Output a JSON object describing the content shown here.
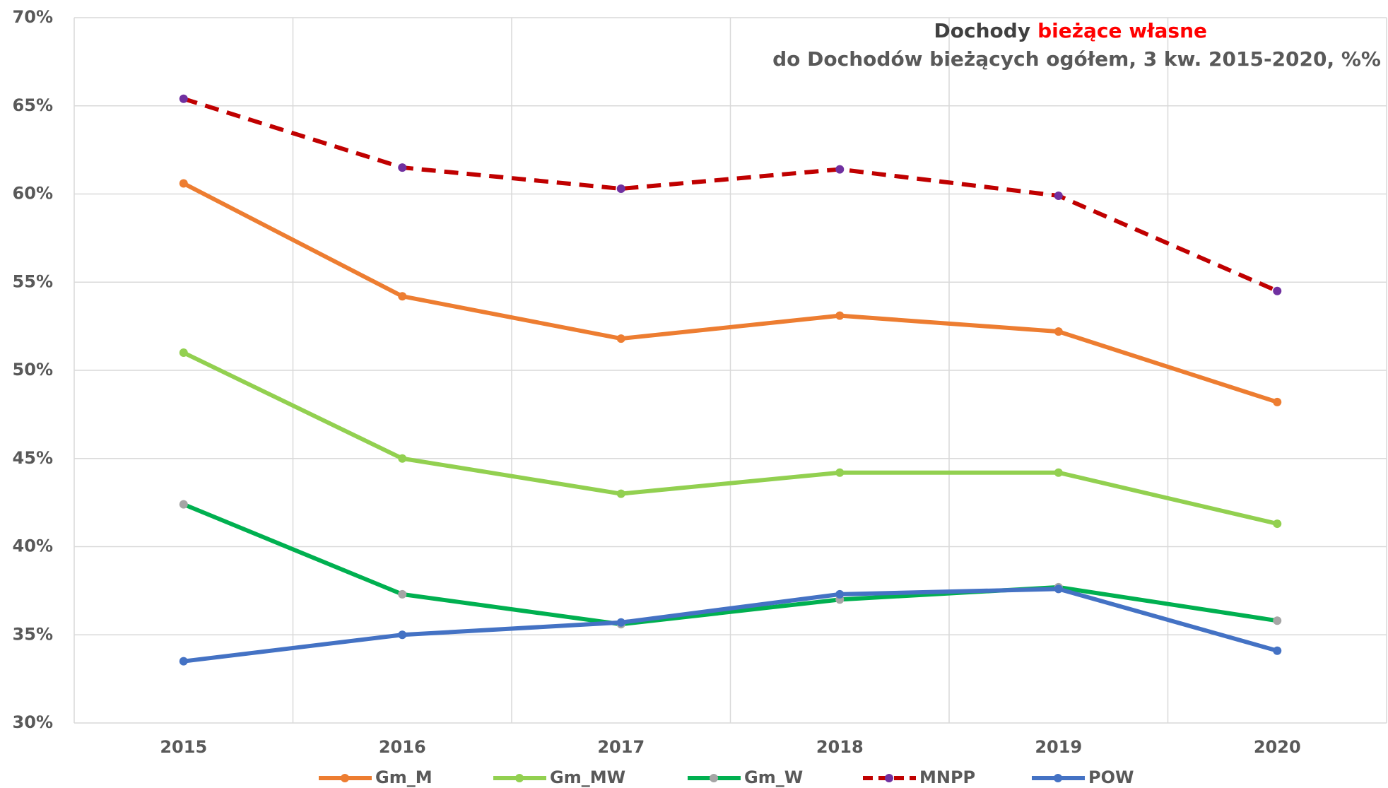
{
  "chart_data": {
    "type": "line",
    "title": [
      "Dochody",
      "bieżące własne"
    ],
    "title_colors": [
      "#404040",
      "#ff0000"
    ],
    "subtitle": "do Dochodów bieżących ogółem,  3 kw. 2015-2020,  %%",
    "categories": [
      "2015",
      "2016",
      "2017",
      "2018",
      "2019",
      "2020"
    ],
    "series": [
      {
        "name": "Gm_M",
        "color": "#ed7d31",
        "marker_color": "#ed7d31",
        "dash": false,
        "values": [
          60.6,
          54.2,
          51.8,
          53.1,
          52.2,
          48.2
        ]
      },
      {
        "name": "Gm_MW",
        "color": "#92d050",
        "marker_color": "#92d050",
        "dash": false,
        "values": [
          51.0,
          45.0,
          43.0,
          44.2,
          44.2,
          41.3
        ]
      },
      {
        "name": "Gm_W",
        "color": "#00b050",
        "marker_color": "#a5a5a5",
        "dash": false,
        "values": [
          42.4,
          37.3,
          35.6,
          37.0,
          37.7,
          35.8
        ]
      },
      {
        "name": "MNPP",
        "color": "#c00000",
        "marker_color": "#7030a0",
        "dash": true,
        "values": [
          65.4,
          61.5,
          60.3,
          61.4,
          59.9,
          54.5
        ]
      },
      {
        "name": "POW",
        "color": "#4472c4",
        "marker_color": "#4472c4",
        "dash": false,
        "values": [
          33.5,
          35.0,
          35.7,
          37.3,
          37.6,
          34.1
        ]
      }
    ],
    "ylim": [
      30,
      70
    ],
    "yticks": [
      {
        "value": 30,
        "label": "30%"
      },
      {
        "value": 35,
        "label": "35%"
      },
      {
        "value": 40,
        "label": "40%"
      },
      {
        "value": 45,
        "label": "45%"
      },
      {
        "value": 50,
        "label": "50%"
      },
      {
        "value": 55,
        "label": "55%"
      },
      {
        "value": 60,
        "label": "60%"
      },
      {
        "value": 65,
        "label": "65%"
      },
      {
        "value": 70,
        "label": "70%"
      }
    ],
    "grid": true,
    "legend": "bottom"
  }
}
